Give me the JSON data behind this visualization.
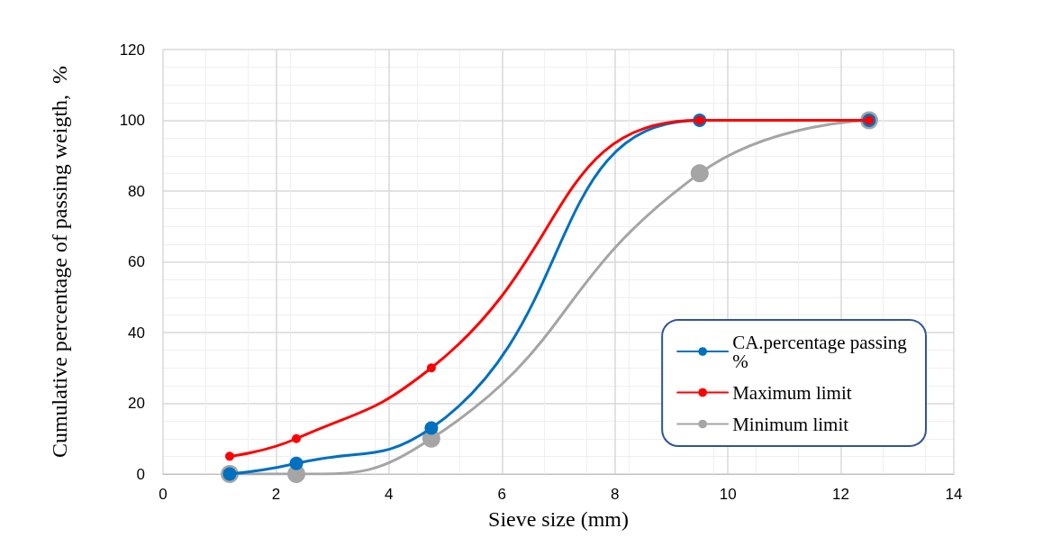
{
  "chart_data": {
    "type": "line",
    "xlabel": "Sieve size (mm)",
    "ylabel": "Cumulative percentage of passing weigth,  %",
    "x": [
      1.18,
      2.36,
      4.75,
      9.5,
      12.5
    ],
    "series": [
      {
        "name": "CA.percentage passing %",
        "color": "#0070c0",
        "values": [
          0,
          3,
          13,
          100,
          100
        ]
      },
      {
        "name": "Maximum limit",
        "color": "#ff0000",
        "values": [
          5,
          10,
          30,
          100,
          100
        ]
      },
      {
        "name": "Minimum limit",
        "color": "#a5a5a5",
        "values": [
          0,
          0,
          10,
          85,
          100
        ]
      }
    ],
    "xlim": [
      0,
      14
    ],
    "xticks": [
      0,
      2,
      4,
      6,
      8,
      10,
      12,
      14
    ],
    "ylim": [
      0,
      120
    ],
    "yticks": [
      0,
      20,
      40,
      60,
      80,
      100,
      120
    ],
    "grid": true,
    "legend": "right",
    "marker": "circle",
    "line_style": "solid"
  }
}
